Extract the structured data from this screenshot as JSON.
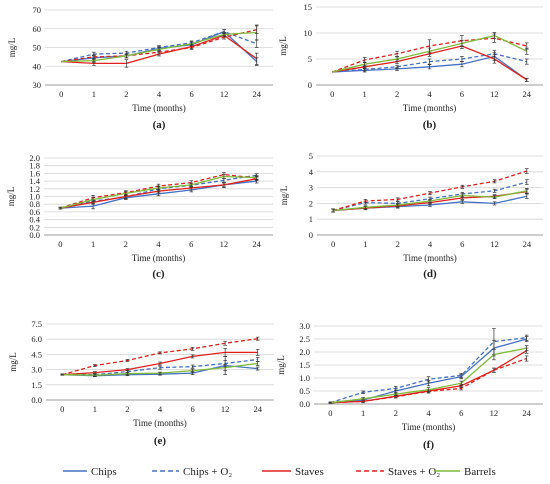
{
  "chart_data": [
    {
      "type": "line",
      "panel": "(a)",
      "xlabel": "Time (months)",
      "ylabel": "mg/L",
      "categories": [
        "0",
        "1",
        "2",
        "4",
        "6",
        "12",
        "24"
      ],
      "ylim": [
        30,
        70
      ],
      "yticks": [
        30,
        40,
        50,
        60,
        70
      ],
      "ydec": 0,
      "series": [
        {
          "name": "Chips",
          "values": [
            42.5,
            44.5,
            45.5,
            49.5,
            51.5,
            58.5,
            42.5
          ],
          "err": [
            0,
            1,
            1,
            1,
            1,
            1,
            2
          ]
        },
        {
          "name": "Chips + O₂",
          "values": [
            42.5,
            46.5,
            47,
            50,
            52.5,
            58.5,
            52
          ],
          "err": [
            0,
            1,
            1,
            1,
            1,
            1,
            2
          ]
        },
        {
          "name": "Staves",
          "values": [
            42.5,
            41.5,
            41.5,
            46.5,
            50.5,
            56.5,
            44
          ],
          "err": [
            0,
            1,
            2,
            1,
            1,
            1,
            3
          ]
        },
        {
          "name": "Staves + O₂",
          "values": [
            42.5,
            45,
            45.5,
            47.5,
            50,
            55.5,
            59.5
          ],
          "err": [
            0,
            1,
            1,
            1,
            1,
            1,
            2
          ]
        },
        {
          "name": "Barrels",
          "values": [
            42.5,
            43,
            45.5,
            49,
            52,
            57,
            58
          ],
          "err": [
            0,
            1,
            1,
            1,
            1,
            1,
            4
          ]
        }
      ]
    },
    {
      "type": "line",
      "panel": "(b)",
      "xlabel": "Time (months)",
      "ylabel": "mg/L",
      "categories": [
        "0",
        "1",
        "2",
        "4",
        "6",
        "12",
        "24"
      ],
      "ylim": [
        0,
        15
      ],
      "yticks": [
        0,
        5,
        10,
        15
      ],
      "ydec": 0,
      "series": [
        {
          "name": "Chips",
          "values": [
            2.5,
            2.8,
            3.1,
            3.5,
            4,
            5.5,
            1
          ],
          "err": [
            0,
            0.3,
            0.3,
            0.4,
            0.5,
            0.8,
            0.3
          ]
        },
        {
          "name": "Chips + O₂",
          "values": [
            2.5,
            3,
            3.5,
            4.5,
            5,
            6,
            4.5
          ],
          "err": [
            0,
            0.3,
            0.3,
            0.5,
            0.5,
            0.6,
            0.5
          ]
        },
        {
          "name": "Staves",
          "values": [
            2.5,
            3.5,
            4.5,
            6,
            7.5,
            5,
            1
          ],
          "err": [
            0,
            0.3,
            0.4,
            0.5,
            0.5,
            0.8,
            0.3
          ]
        },
        {
          "name": "Staves + O₂",
          "values": [
            2.5,
            4.8,
            6,
            7.5,
            8.5,
            9,
            7.5
          ],
          "err": [
            0,
            0.5,
            0.5,
            1.2,
            1,
            0.8,
            0.6
          ]
        },
        {
          "name": "Barrels",
          "values": [
            2.5,
            4,
            5,
            6.5,
            8,
            9.5,
            6.5
          ],
          "err": [
            0,
            0.4,
            0.4,
            0.6,
            0.6,
            0.6,
            0.6
          ]
        }
      ]
    },
    {
      "type": "line",
      "panel": "(c)",
      "xlabel": "Time (months)",
      "ylabel": "mg/L",
      "categories": [
        "0",
        "1",
        "2",
        "4",
        "6",
        "12",
        "24"
      ],
      "ylim": [
        0,
        2.0
      ],
      "yticks": [
        0,
        0.2,
        0.4,
        0.6,
        0.8,
        1.0,
        1.2,
        1.4,
        1.6,
        1.8,
        2.0
      ],
      "ydec": 1,
      "series": [
        {
          "name": "Chips",
          "values": [
            0.7,
            0.75,
            0.97,
            1.07,
            1.17,
            1.3,
            1.4
          ],
          "err": [
            0.02,
            0.07,
            0.05,
            0.05,
            0.05,
            0.05,
            0.05
          ]
        },
        {
          "name": "Chips + O₂",
          "values": [
            0.7,
            0.88,
            0.99,
            1.2,
            1.29,
            1.42,
            1.55
          ],
          "err": [
            0.02,
            0.05,
            0.05,
            0.05,
            0.05,
            0.05,
            0.04
          ]
        },
        {
          "name": "Staves",
          "values": [
            0.7,
            0.85,
            1,
            1.14,
            1.22,
            1.3,
            1.46
          ],
          "err": [
            0.02,
            0.05,
            0.05,
            0.05,
            0.05,
            0.07,
            0.05
          ]
        },
        {
          "name": "Staves + O₂",
          "values": [
            0.7,
            0.97,
            1.1,
            1.27,
            1.36,
            1.57,
            1.48
          ],
          "err": [
            0.02,
            0.06,
            0.05,
            0.05,
            0.05,
            0.05,
            0.05
          ]
        },
        {
          "name": "Barrels",
          "values": [
            0.7,
            0.92,
            1.08,
            1.22,
            1.3,
            1.52,
            1.49
          ],
          "err": [
            0.02,
            0.05,
            0.05,
            0.05,
            0.05,
            0.05,
            0.05
          ]
        }
      ]
    },
    {
      "type": "line",
      "panel": "(d)",
      "xlabel": "Time (months)",
      "ylabel": "mg/L",
      "categories": [
        "0",
        "1",
        "2",
        "4",
        "6",
        "12",
        "24"
      ],
      "ylim": [
        0,
        5
      ],
      "yticks": [
        0,
        1,
        2,
        3,
        4,
        5
      ],
      "ydec": 0,
      "series": [
        {
          "name": "Chips",
          "values": [
            1.55,
            1.7,
            1.8,
            1.9,
            2.1,
            2,
            2.45
          ],
          "err": [
            0.1,
            0.1,
            0.1,
            0.1,
            0.1,
            0.1,
            0.15
          ]
        },
        {
          "name": "Chips + O₂",
          "values": [
            1.55,
            2.05,
            2,
            2.3,
            2.6,
            2.8,
            3.35
          ],
          "err": [
            0.1,
            0.1,
            0.1,
            0.1,
            0.1,
            0.1,
            0.15
          ]
        },
        {
          "name": "Staves",
          "values": [
            1.55,
            1.7,
            1.85,
            2.05,
            2.35,
            2.45,
            2.75
          ],
          "err": [
            0.1,
            0.1,
            0.1,
            0.1,
            0.1,
            0.1,
            0.15
          ]
        },
        {
          "name": "Staves + O₂",
          "values": [
            1.55,
            2.15,
            2.25,
            2.65,
            3.05,
            3.4,
            4.05
          ],
          "err": [
            0.1,
            0.1,
            0.1,
            0.1,
            0.1,
            0.1,
            0.15
          ]
        },
        {
          "name": "Barrels",
          "values": [
            1.55,
            1.75,
            1.9,
            2.15,
            2.5,
            2.4,
            2.8
          ],
          "err": [
            0.1,
            0.1,
            0.1,
            0.1,
            0.1,
            0.1,
            0.15
          ]
        }
      ]
    },
    {
      "type": "line",
      "panel": "(e)",
      "xlabel": "Time (months)",
      "ylabel": "mg/L",
      "categories": [
        "0",
        "1",
        "2",
        "4",
        "6",
        "12",
        "24"
      ],
      "ylim": [
        0,
        7.5
      ],
      "yticks": [
        0,
        1.5,
        3.0,
        4.5,
        6.0,
        7.5
      ],
      "ydec": 1,
      "series": [
        {
          "name": "Chips",
          "values": [
            2.5,
            2.4,
            2.5,
            2.55,
            2.65,
            3.4,
            3.1
          ],
          "err": [
            0.05,
            0.1,
            0.1,
            0.1,
            0.15,
            0.9,
            0.15
          ]
        },
        {
          "name": "Chips + O₂",
          "values": [
            2.5,
            2.5,
            2.8,
            3.2,
            3.3,
            3.6,
            4
          ],
          "err": [
            0.05,
            0.1,
            0.1,
            0.15,
            0.15,
            0.3,
            0.2
          ]
        },
        {
          "name": "Staves",
          "values": [
            2.5,
            2.7,
            3,
            3.6,
            4.3,
            4.7,
            4.7
          ],
          "err": [
            0.05,
            0.1,
            0.1,
            0.15,
            0.15,
            0.4,
            0.3
          ]
        },
        {
          "name": "Staves + O₂",
          "values": [
            2.5,
            3.4,
            3.9,
            4.65,
            5.05,
            5.6,
            6.05
          ],
          "err": [
            0.05,
            0.1,
            0.1,
            0.1,
            0.15,
            0.2,
            0.15
          ]
        },
        {
          "name": "Barrels",
          "values": [
            2.5,
            2.45,
            2.6,
            2.65,
            2.9,
            3.2,
            3.6
          ],
          "err": [
            0.05,
            0.1,
            0.1,
            0.1,
            0.15,
            0.3,
            0.2
          ]
        }
      ]
    },
    {
      "type": "line",
      "panel": "(f)",
      "xlabel": "Time (months)",
      "ylabel": "mg/L",
      "categories": [
        "0",
        "1",
        "2",
        "4",
        "6",
        "12",
        "24"
      ],
      "ylim": [
        0,
        3.0
      ],
      "yticks": [
        0,
        0.5,
        1.0,
        1.5,
        2.0,
        2.5,
        3.0
      ],
      "ydec": 1,
      "series": [
        {
          "name": "Chips",
          "values": [
            0.05,
            0.15,
            0.5,
            0.8,
            1.05,
            2.15,
            2.5
          ],
          "err": [
            0.02,
            0.05,
            0.08,
            0.1,
            0.08,
            0.3,
            0.1
          ]
        },
        {
          "name": "Chips + O₂",
          "values": [
            0.05,
            0.45,
            0.6,
            0.95,
            1.1,
            2.4,
            2.55
          ],
          "err": [
            0.02,
            0.05,
            0.08,
            0.1,
            0.08,
            0.5,
            0.1
          ]
        },
        {
          "name": "Staves",
          "values": [
            0.05,
            0.1,
            0.3,
            0.5,
            0.7,
            1.3,
            2.05
          ],
          "err": [
            0.02,
            0.05,
            0.05,
            0.06,
            0.06,
            0.08,
            0.1
          ]
        },
        {
          "name": "Staves + O₂",
          "values": [
            0.05,
            0.1,
            0.28,
            0.48,
            0.6,
            1.3,
            1.75
          ],
          "err": [
            0.02,
            0.05,
            0.05,
            0.06,
            0.06,
            0.08,
            0.1
          ]
        },
        {
          "name": "Barrels",
          "values": [
            0.05,
            0.2,
            0.38,
            0.55,
            0.8,
            1.9,
            2.15
          ],
          "err": [
            0.02,
            0.05,
            0.06,
            0.08,
            0.08,
            0.2,
            0.1
          ]
        }
      ]
    }
  ],
  "legend": {
    "items": [
      {
        "label": "Chips",
        "color": "#4472c4",
        "dash": false
      },
      {
        "label": "Chips + O₂",
        "color": "#4472c4",
        "dash": true
      },
      {
        "label": "Staves",
        "color": "#e0201c",
        "dash": false
      },
      {
        "label": "Staves + O₂",
        "color": "#e0201c",
        "dash": true
      },
      {
        "label": "Barrels",
        "color": "#7fba3a",
        "dash": false
      }
    ]
  },
  "colors": {
    "Chips": "#4472c4",
    "Chips + O₂": "#4472c4",
    "Staves": "#e0201c",
    "Staves + O₂": "#e0201c",
    "Barrels": "#7fba3a",
    "grid": "#d4d4d4",
    "axis": "#888888"
  }
}
